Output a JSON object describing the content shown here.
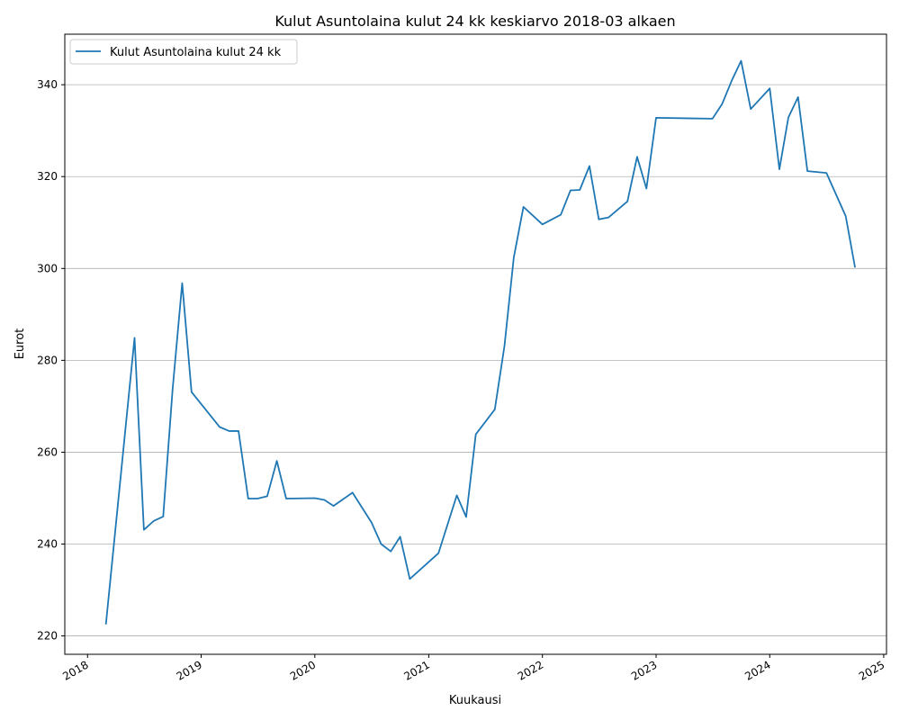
{
  "chart_data": {
    "type": "line",
    "title": "Kulut Asuntolaina kulut 24 kk keskiarvo 2018-03 alkaen",
    "xlabel": "Kuukausi",
    "ylabel": "Eurot",
    "x_ticks": [
      "2018",
      "2019",
      "2020",
      "2021",
      "2022",
      "2023",
      "2024",
      "2025"
    ],
    "y_ticks": [
      220,
      240,
      260,
      280,
      300,
      320,
      340
    ],
    "xlim": [
      "2017-10-20",
      "2025-01-10"
    ],
    "ylim": [
      216,
      351
    ],
    "grid": "horizontal",
    "legend_position": "top-left",
    "series": [
      {
        "name": "Kulut Asuntolaina kulut 24 kk",
        "color": "#1f77b4",
        "x": [
          "2018-03",
          "2018-06",
          "2018-07",
          "2018-08",
          "2018-09",
          "2018-10",
          "2018-11",
          "2018-12",
          "2019-03",
          "2019-04",
          "2019-05",
          "2019-06",
          "2019-07",
          "2019-08",
          "2019-09",
          "2019-10",
          "2020-01",
          "2020-02",
          "2020-03",
          "2020-05",
          "2020-07",
          "2020-08",
          "2020-09",
          "2020-10",
          "2020-11",
          "2021-02",
          "2021-04",
          "2021-05",
          "2021-06",
          "2021-08",
          "2021-09",
          "2021-10",
          "2021-11",
          "2022-01",
          "2022-03",
          "2022-04",
          "2022-05",
          "2022-06",
          "2022-07",
          "2022-08",
          "2022-10",
          "2022-11",
          "2022-12",
          "2023-01",
          "2023-07",
          "2023-08",
          "2023-09",
          "2023-10",
          "2023-11",
          "2024-01",
          "2024-02",
          "2024-03",
          "2024-04",
          "2024-05",
          "2024-07",
          "2024-09",
          "2024-10"
        ],
        "values": [
          222.5,
          284.9,
          243.1,
          245.0,
          246.0,
          273.5,
          296.8,
          273.1,
          265.5,
          264.6,
          264.6,
          249.9,
          249.9,
          250.4,
          258.1,
          249.9,
          250.0,
          249.6,
          248.3,
          251.2,
          244.7,
          240.0,
          238.4,
          241.6,
          232.4,
          238.0,
          250.6,
          245.9,
          263.9,
          269.3,
          283.1,
          302.4,
          313.4,
          309.6,
          311.7,
          317.0,
          317.1,
          322.3,
          310.7,
          311.1,
          314.6,
          324.3,
          317.4,
          332.8,
          332.6,
          335.8,
          340.9,
          345.2,
          334.7,
          339.2,
          321.6,
          332.9,
          337.3,
          321.2,
          320.8,
          311.4,
          300.2
        ]
      }
    ]
  }
}
